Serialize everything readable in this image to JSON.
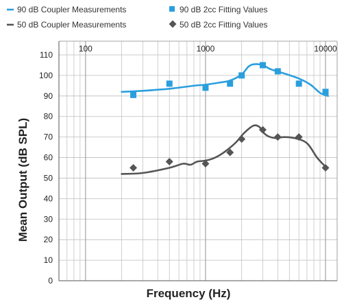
{
  "chart_data": {
    "type": "line",
    "xlabel": "Frequency (Hz)",
    "ylabel": "Mean Output (dB SPL)",
    "xscale": "log",
    "xlim": [
      60,
      12500
    ],
    "ylim": [
      0,
      110
    ],
    "x_ticks": [
      100,
      1000,
      10000
    ],
    "x_tick_labels": [
      "100",
      "1000",
      "10000"
    ],
    "y_ticks": [
      0,
      10,
      20,
      30,
      40,
      50,
      60,
      70,
      80,
      90,
      100,
      110
    ],
    "grid": true,
    "legend_position": "top",
    "legend": [
      {
        "label": "90 dB Coupler Measurements",
        "marker": "line",
        "series": 0
      },
      {
        "label": "90 dB 2cc Fitting Values",
        "marker": "square",
        "series": 2
      },
      {
        "label": "50 dB Coupler Measurements",
        "marker": "line",
        "series": 1
      },
      {
        "label": "50 dB 2cc Fitting Values",
        "marker": "diamond",
        "series": 3
      }
    ],
    "series": [
      {
        "kind": "line",
        "color": "#2a9fde",
        "points": [
          [
            200,
            92
          ],
          [
            300,
            92.5
          ],
          [
            500,
            93.5
          ],
          [
            800,
            95
          ],
          [
            1000,
            95.5
          ],
          [
            1300,
            96.5
          ],
          [
            1600,
            97.5
          ],
          [
            2000,
            100.5
          ],
          [
            2300,
            104.5
          ],
          [
            2600,
            105.5
          ],
          [
            3000,
            105
          ],
          [
            3500,
            103
          ],
          [
            4500,
            101
          ],
          [
            6000,
            98.5
          ],
          [
            7500,
            95.5
          ],
          [
            9000,
            91.5
          ],
          [
            10500,
            90
          ]
        ]
      },
      {
        "kind": "line",
        "color": "#555555",
        "points": [
          [
            200,
            52
          ],
          [
            300,
            52.5
          ],
          [
            500,
            55
          ],
          [
            650,
            57
          ],
          [
            750,
            56.5
          ],
          [
            850,
            58
          ],
          [
            1000,
            58.5
          ],
          [
            1150,
            59.5
          ],
          [
            1300,
            61
          ],
          [
            1500,
            63.5
          ],
          [
            1800,
            67.5
          ],
          [
            2100,
            72
          ],
          [
            2500,
            75.5
          ],
          [
            2800,
            75
          ],
          [
            3000,
            72.5
          ],
          [
            3300,
            70.5
          ],
          [
            3800,
            69.5
          ],
          [
            4500,
            70
          ],
          [
            5500,
            69.5
          ],
          [
            7000,
            67
          ],
          [
            8500,
            60
          ],
          [
            10000,
            55.5
          ]
        ]
      },
      {
        "kind": "scatter",
        "marker": "square",
        "color": "#2a9fde",
        "points": [
          [
            250,
            90.5
          ],
          [
            500,
            96
          ],
          [
            1000,
            94
          ],
          [
            1600,
            96
          ],
          [
            2000,
            100
          ],
          [
            3000,
            105
          ],
          [
            4000,
            102
          ],
          [
            6000,
            96
          ],
          [
            10000,
            92
          ]
        ]
      },
      {
        "kind": "scatter",
        "marker": "diamond",
        "color": "#555555",
        "points": [
          [
            250,
            55
          ],
          [
            500,
            58
          ],
          [
            1000,
            57
          ],
          [
            1600,
            62.5
          ],
          [
            2000,
            69
          ],
          [
            3000,
            73.5
          ],
          [
            4000,
            70
          ],
          [
            6000,
            70
          ],
          [
            10000,
            55
          ]
        ]
      }
    ]
  }
}
